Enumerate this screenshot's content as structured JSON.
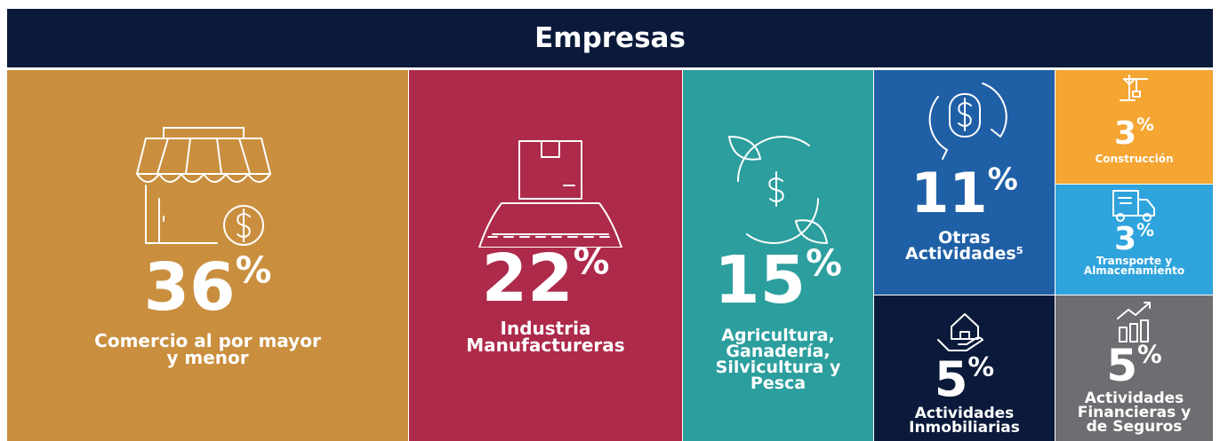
{
  "chart_data": {
    "type": "treemap",
    "title": "Empresas",
    "categories": [
      "Comercio al por mayor y menor",
      "Industria Manufactureras",
      "Agricultura, Ganadería, Silvicultura y Pesca",
      "Otras Actividades⁵",
      "Actividades Inmobiliarias",
      "Construcción",
      "Transporte y Almacenamiento",
      "Actividades Financieras y de Seguros"
    ],
    "values": [
      36,
      22,
      15,
      11,
      5,
      3,
      3,
      5
    ],
    "unit": "%",
    "colors": [
      "#c98f3e",
      "#ad2a4a",
      "#2c9e9e",
      "#1f5fa6",
      "#0b1a3a",
      "#f5a532",
      "#2fa3dc",
      "#6d6e71"
    ]
  }
}
